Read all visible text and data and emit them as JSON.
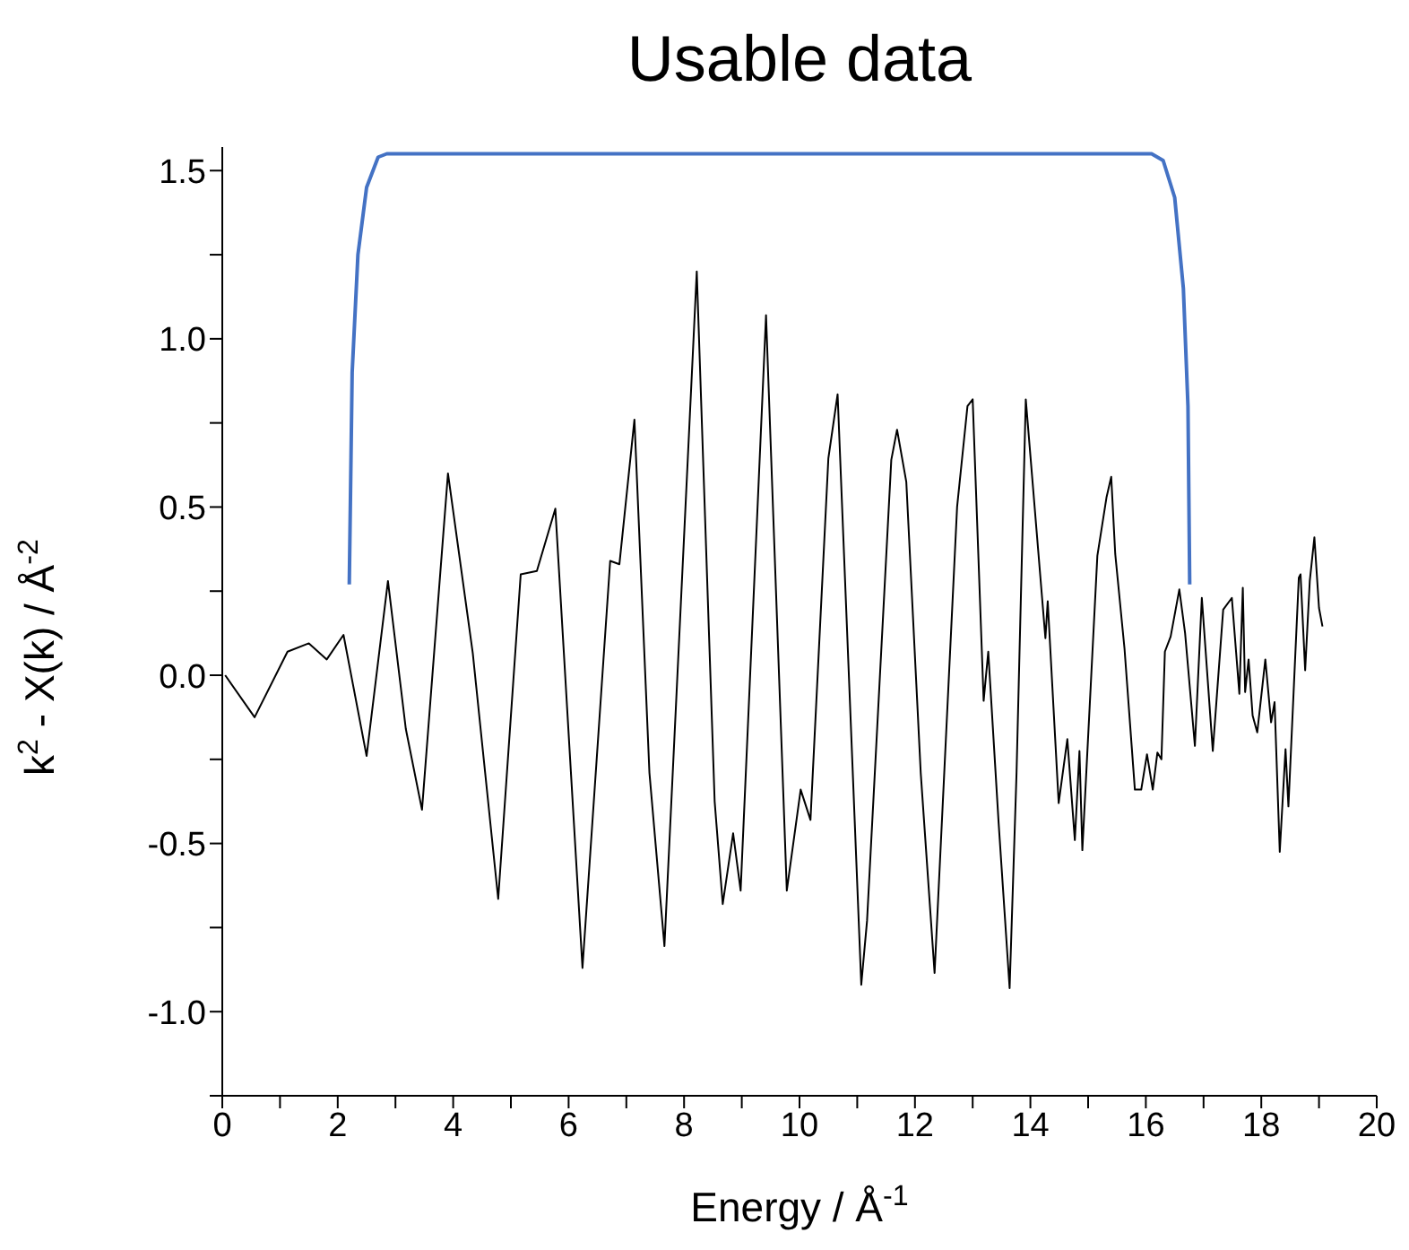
{
  "chart_data": {
    "type": "line",
    "title": "Usable data",
    "xlabel": "Energy / Å$^{-1}$",
    "ylabel": "k$^{2}$ - X(k) / Å$^{-2}$",
    "xlim": [
      0,
      20
    ],
    "ylim": [
      -1.25,
      1.57
    ],
    "xticks": [
      0,
      {
        "value": 1,
        "label": null
      },
      2,
      {
        "value": 3,
        "label": null
      },
      4,
      {
        "value": 5,
        "label": null
      },
      6,
      {
        "value": 7,
        "label": null
      },
      8,
      {
        "value": 9,
        "label": null
      },
      10,
      {
        "value": 11,
        "label": null
      },
      12,
      {
        "value": 13,
        "label": null
      },
      14,
      {
        "value": 15,
        "label": null
      },
      16,
      {
        "value": 17,
        "label": null
      },
      18,
      {
        "value": 19,
        "label": null
      },
      20
    ],
    "yticks": [
      {
        "value": -1.25,
        "label": null
      },
      {
        "value": -1.0,
        "label": "-1.0"
      },
      {
        "value": -0.75,
        "label": null
      },
      -0.5,
      {
        "value": -0.25,
        "label": null
      },
      {
        "value": 0.0,
        "label": "0.0"
      },
      {
        "value": 0.25,
        "label": null
      },
      0.5,
      {
        "value": 0.75,
        "label": null
      },
      {
        "value": 1.0,
        "label": "1.0"
      },
      {
        "value": 1.25,
        "label": null
      },
      1.5
    ],
    "series": [
      {
        "color": "#000000",
        "x": [
          0.05,
          0.56,
          1.13,
          1.5,
          1.81,
          2.1,
          2.5,
          2.87,
          3.18,
          3.46,
          3.91,
          4.34,
          4.78,
          5.17,
          5.45,
          5.77,
          6.24,
          6.72,
          6.88,
          7.14,
          7.4,
          7.66,
          8.22,
          8.53,
          8.67,
          8.85,
          8.98,
          9.42,
          9.78,
          10.02,
          10.19,
          10.5,
          10.66,
          11.07,
          11.17,
          11.59,
          11.69,
          11.85,
          12.1,
          12.34,
          12.73,
          12.91,
          13.0,
          13.19,
          13.27,
          13.45,
          13.64,
          13.76,
          13.92,
          14.26,
          14.3,
          14.49,
          14.64,
          14.77,
          14.85,
          14.9,
          15.16,
          15.32,
          15.4,
          15.47,
          15.63,
          15.81,
          15.92,
          16.02,
          16.12,
          16.2,
          16.27,
          16.33,
          16.43,
          16.58,
          16.68,
          16.85,
          16.97,
          17.16,
          17.34,
          17.49,
          17.62,
          17.68,
          17.72,
          17.78,
          17.85,
          17.93,
          18.07,
          18.17,
          18.23,
          18.32,
          18.42,
          18.47,
          18.56,
          18.65,
          18.68,
          18.76,
          18.84,
          18.92,
          19.0,
          19.06
        ],
        "values": [
          0.0,
          -0.125,
          0.07,
          0.095,
          0.047,
          0.12,
          -0.24,
          0.28,
          -0.16,
          -0.4,
          0.6,
          0.065,
          -0.665,
          0.3,
          0.31,
          0.495,
          -0.87,
          0.34,
          0.33,
          0.76,
          -0.29,
          -0.805,
          1.2,
          -0.375,
          -0.68,
          -0.47,
          -0.64,
          1.07,
          -0.64,
          -0.34,
          -0.43,
          0.645,
          0.835,
          -0.92,
          -0.73,
          0.64,
          0.73,
          0.575,
          -0.29,
          -0.885,
          0.5,
          0.8,
          0.82,
          -0.076,
          0.07,
          -0.44,
          -0.93,
          -0.29,
          0.82,
          0.11,
          0.22,
          -0.38,
          -0.19,
          -0.49,
          -0.225,
          -0.52,
          0.355,
          0.53,
          0.59,
          0.36,
          0.08,
          -0.34,
          -0.34,
          -0.235,
          -0.34,
          -0.23,
          -0.25,
          0.07,
          0.115,
          0.255,
          0.125,
          -0.21,
          0.23,
          -0.225,
          0.195,
          0.23,
          -0.055,
          0.26,
          -0.05,
          0.047,
          -0.12,
          -0.17,
          0.047,
          -0.14,
          -0.08,
          -0.525,
          -0.22,
          -0.39,
          -0.05,
          0.29,
          0.3,
          0.015,
          0.28,
          0.41,
          0.2,
          0.145
        ]
      },
      {
        "color": "#4472c4",
        "x": [
          2.2,
          2.25,
          2.35,
          2.5,
          2.7,
          2.85,
          16.1,
          16.3,
          16.5,
          16.65,
          16.73,
          16.76
        ],
        "values": [
          0.27,
          0.9,
          1.25,
          1.45,
          1.54,
          1.55,
          1.55,
          1.53,
          1.42,
          1.15,
          0.8,
          0.27
        ]
      }
    ]
  }
}
